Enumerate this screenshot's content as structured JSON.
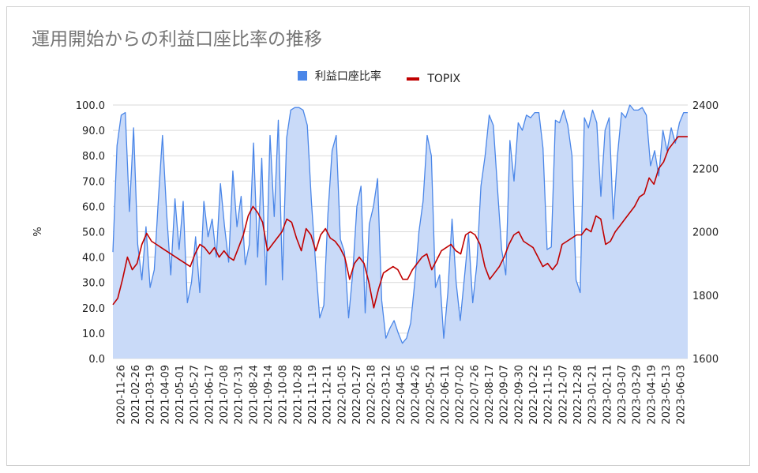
{
  "chart_data": {
    "type": "line",
    "title": "運用開始からの利益口座比率の推移",
    "ylabel": "%",
    "ylim": [
      0,
      100
    ],
    "y2lim": [
      1600,
      2400
    ],
    "legend_position": "top",
    "grid": true,
    "y_ticks": [
      "0.0",
      "10.0",
      "20.0",
      "30.0",
      "40.0",
      "50.0",
      "60.0",
      "70.0",
      "80.0",
      "90.0",
      "100.0"
    ],
    "y2_ticks": [
      "1600",
      "1800",
      "2000",
      "2200",
      "2400"
    ],
    "x_ticks": [
      "2020-11-26",
      "2021-02-26",
      "2021-03-19",
      "2021-04-09",
      "2021-05-01",
      "2021-05-27",
      "2021-06-17",
      "2021-07-08",
      "2021-07-31",
      "2021-08-24",
      "2021-09-14",
      "2021-10-08",
      "2021-10-28",
      "2021-11-19",
      "2021-12-11",
      "2022-01-05",
      "2022-01-27",
      "2022-02-18",
      "2022-03-12",
      "2022-04-05",
      "2022-04-26",
      "2022-05-21",
      "2022-06-11",
      "2022-07-02",
      "2022-07-26",
      "2022-08-17",
      "2022-09-07",
      "2022-09-30",
      "2022-10-22",
      "2022-11-15",
      "2022-12-07",
      "2022-12-28",
      "2023-01-21",
      "2023-02-11",
      "2023-03-07",
      "2023-03-29",
      "2023-04-19",
      "2023-05-13",
      "2023-06-03"
    ],
    "series": [
      {
        "name": "利益口座比率",
        "axis": "left",
        "color": "#4a86e8",
        "values": [
          42,
          84,
          96,
          97,
          58,
          91,
          45,
          31,
          52,
          28,
          35,
          63,
          88,
          57,
          33,
          63,
          43,
          62,
          22,
          30,
          48,
          26,
          62,
          48,
          55,
          40,
          69,
          52,
          38,
          74,
          52,
          64,
          37,
          45,
          85,
          40,
          79,
          29,
          88,
          56,
          94,
          31,
          87,
          98,
          99,
          99,
          98,
          92,
          62,
          38,
          16,
          21,
          57,
          82,
          88,
          47,
          42,
          16,
          34,
          60,
          68,
          18,
          53,
          60,
          71,
          23,
          8,
          12,
          15,
          10,
          6,
          8,
          14,
          30,
          50,
          62,
          88,
          80,
          28,
          33,
          8,
          26,
          55,
          30,
          15,
          32,
          49,
          22,
          37,
          68,
          80,
          96,
          92,
          67,
          43,
          33,
          86,
          70,
          93,
          90,
          96,
          95,
          97,
          97,
          83,
          43,
          44,
          94,
          93,
          98,
          92,
          80,
          31,
          26,
          95,
          91,
          98,
          93,
          64,
          90,
          95,
          55,
          80,
          97,
          95,
          100,
          98,
          98,
          99,
          96,
          76,
          82,
          72,
          90,
          82,
          91,
          85,
          93,
          97,
          97
        ]
      },
      {
        "name": "TOPIX",
        "axis": "right",
        "color": "#c00000",
        "values": [
          1770,
          1790,
          1850,
          1920,
          1880,
          1900,
          1960,
          1995,
          1970,
          1960,
          1950,
          1940,
          1930,
          1920,
          1910,
          1900,
          1890,
          1930,
          1960,
          1950,
          1930,
          1950,
          1920,
          1940,
          1920,
          1910,
          1950,
          1990,
          2050,
          2080,
          2060,
          2030,
          1940,
          1960,
          1980,
          2000,
          2040,
          2030,
          1980,
          1940,
          2010,
          1990,
          1940,
          1990,
          2010,
          1980,
          1970,
          1950,
          1920,
          1850,
          1900,
          1920,
          1900,
          1840,
          1760,
          1820,
          1870,
          1880,
          1890,
          1880,
          1850,
          1850,
          1880,
          1900,
          1920,
          1930,
          1880,
          1910,
          1940,
          1950,
          1960,
          1940,
          1930,
          1990,
          2000,
          1990,
          1960,
          1890,
          1850,
          1870,
          1890,
          1920,
          1960,
          1990,
          2000,
          1970,
          1960,
          1950,
          1920,
          1890,
          1900,
          1880,
          1900,
          1960,
          1970,
          1980,
          1990,
          1990,
          2010,
          2000,
          2050,
          2040,
          1960,
          1970,
          2000,
          2020,
          2040,
          2060,
          2080,
          2110,
          2120,
          2170,
          2150,
          2200,
          2220,
          2260,
          2280,
          2300,
          2300,
          2300
        ]
      }
    ]
  },
  "legend": {
    "left_series": "利益口座比率",
    "right_series": "TOPIX"
  },
  "colors": {
    "area_fill": "#c9daf8",
    "left_line": "#4a86e8",
    "right_line": "#c00000",
    "grid": "#d9d9d9"
  }
}
